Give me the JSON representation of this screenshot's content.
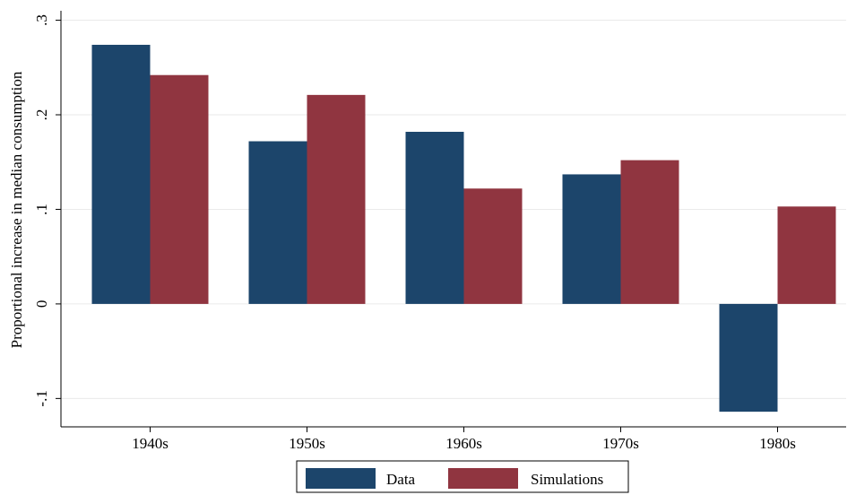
{
  "chart_data": {
    "type": "bar",
    "categories": [
      "1940s",
      "1950s",
      "1960s",
      "1970s",
      "1980s"
    ],
    "series": [
      {
        "name": "Data",
        "color": "#1c456b",
        "values": [
          0.274,
          0.172,
          0.182,
          0.137,
          -0.114
        ]
      },
      {
        "name": "Simulations",
        "color": "#903540",
        "values": [
          0.242,
          0.221,
          0.122,
          0.152,
          0.103
        ]
      }
    ],
    "title": "",
    "xlabel": "",
    "ylabel": "Proportional increase in median consumption",
    "ylim": [
      -0.13,
      0.31
    ],
    "yticks": [
      -0.1,
      0,
      0.1,
      0.2,
      0.3
    ],
    "ytick_labels": [
      "-.1",
      "0",
      ".1",
      ".2",
      ".3"
    ],
    "grid": true,
    "gridline_color": "#eaeaea",
    "legend_position": "bottom-center"
  }
}
